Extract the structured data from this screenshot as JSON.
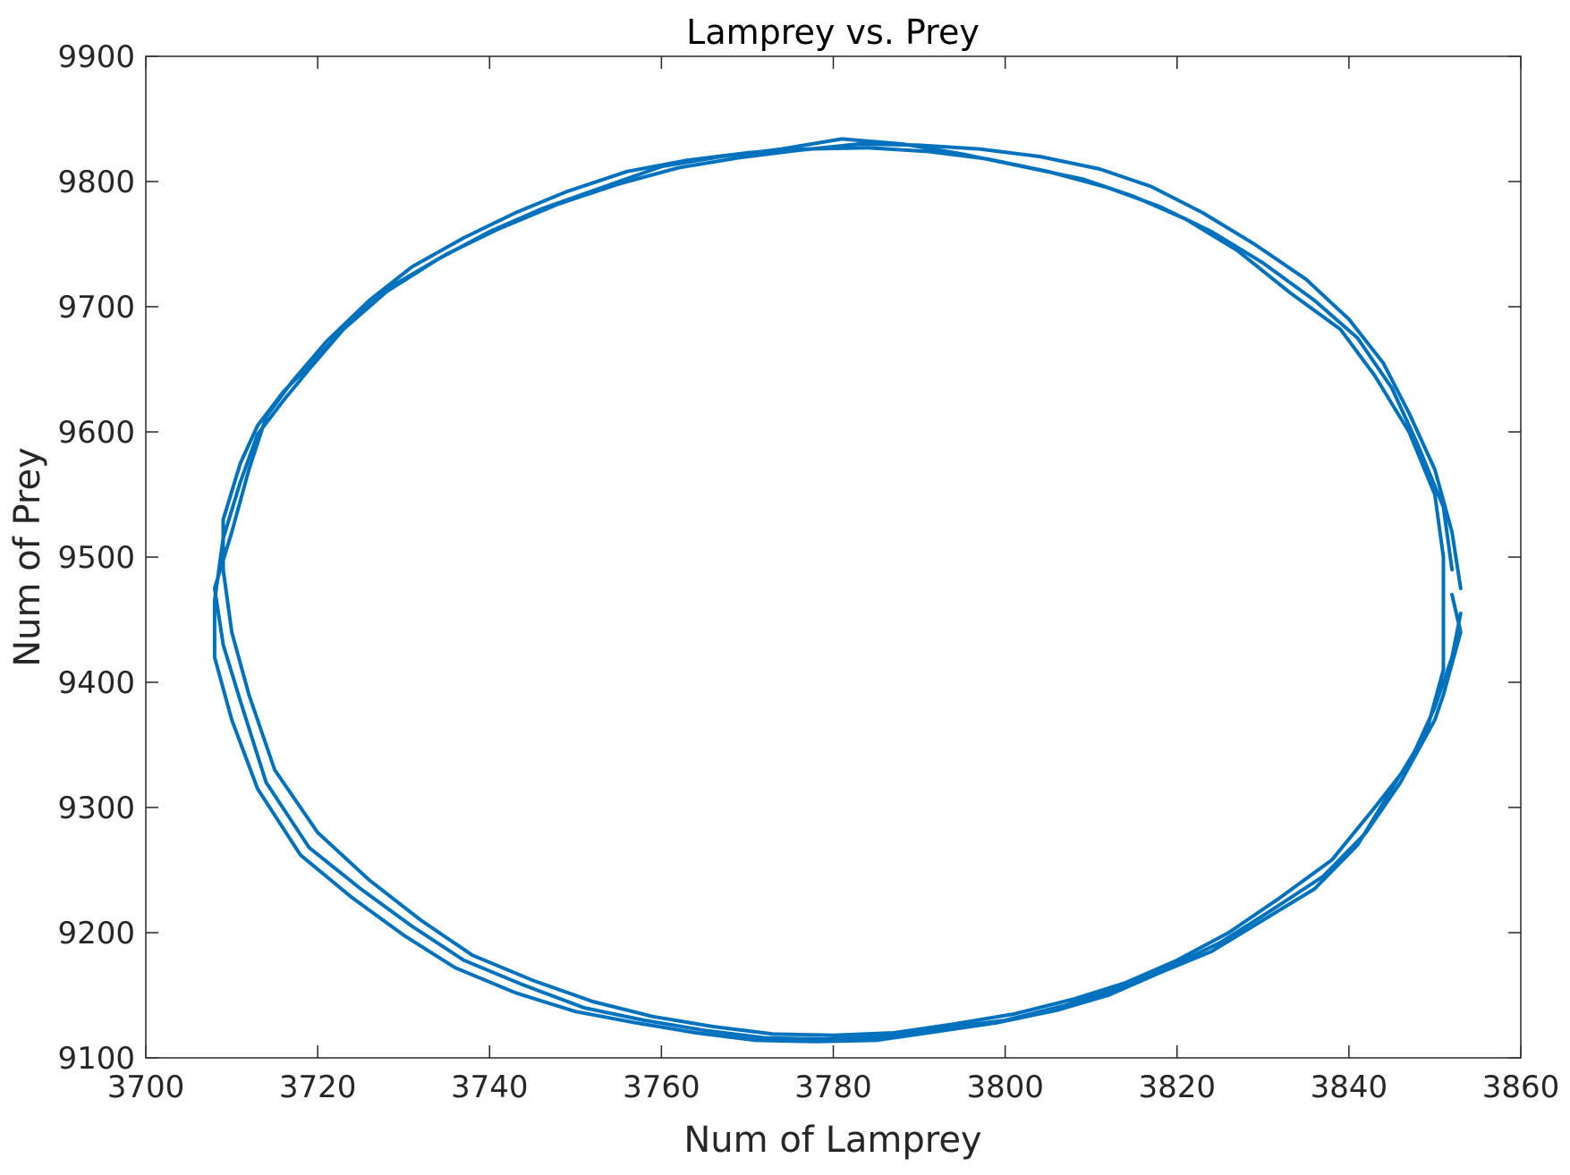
{
  "chart_data": {
    "type": "line",
    "title": "Lamprey vs. Prey",
    "xlabel": "Num of Lamprey",
    "ylabel": "Num of Prey",
    "xlim": [
      3700,
      3860
    ],
    "ylim": [
      9100,
      9900
    ],
    "xticks": [
      "3700",
      "3720",
      "3740",
      "3760",
      "3780",
      "3800",
      "3820",
      "3840",
      "3860"
    ],
    "yticks": [
      "9100",
      "9200",
      "9300",
      "9400",
      "9500",
      "9600",
      "9700",
      "9800",
      "9900"
    ],
    "grid": false,
    "legend": "none",
    "line_color": "#0072BD",
    "series": [
      {
        "x": [
          3852,
          3853,
          3851,
          3850,
          3846,
          3842,
          3837,
          3831,
          3825,
          3819,
          3813,
          3807,
          3800,
          3793,
          3786,
          3779,
          3772,
          3765,
          3758,
          3751,
          3744,
          3737,
          3731,
          3725,
          3719,
          3714,
          3711,
          3709,
          3708,
          3710,
          3712,
          3714,
          3717,
          3721,
          3726,
          3731,
          3737,
          3743,
          3749,
          3756,
          3763,
          3770,
          3777,
          3784,
          3791,
          3798,
          3805,
          3812,
          3818,
          3824,
          3830,
          3836,
          3841,
          3845,
          3848,
          3851,
          3852
        ],
        "y": [
          9470,
          9440,
          9390,
          9370,
          9320,
          9280,
          9245,
          9218,
          9192,
          9172,
          9155,
          9142,
          9130,
          9124,
          9117,
          9115,
          9116,
          9122,
          9130,
          9140,
          9158,
          9178,
          9205,
          9235,
          9268,
          9320,
          9385,
          9430,
          9475,
          9520,
          9570,
          9612,
          9640,
          9672,
          9705,
          9732,
          9755,
          9775,
          9792,
          9808,
          9817,
          9823,
          9826,
          9827,
          9824,
          9818,
          9808,
          9795,
          9780,
          9760,
          9735,
          9705,
          9675,
          9635,
          9590,
          9540,
          9490
        ]
      },
      {
        "x": [
          3853,
          3852,
          3850,
          3847,
          3843,
          3838,
          3832,
          3826,
          3820,
          3814,
          3808,
          3801,
          3794,
          3787,
          3780,
          3773,
          3766,
          3759,
          3752,
          3745,
          3738,
          3732,
          3726,
          3720,
          3715,
          3712,
          3710,
          3709,
          3709,
          3711,
          3713,
          3716,
          3720,
          3724,
          3729,
          3735,
          3741,
          3748,
          3755,
          3762,
          3769,
          3776,
          3783,
          3790,
          3797,
          3804,
          3811,
          3817,
          3823,
          3829,
          3835,
          3840,
          3844,
          3847,
          3850,
          3852,
          3853
        ],
        "y": [
          9455,
          9420,
          9380,
          9335,
          9300,
          9258,
          9228,
          9200,
          9178,
          9160,
          9147,
          9135,
          9127,
          9120,
          9118,
          9119,
          9125,
          9133,
          9145,
          9162,
          9182,
          9210,
          9242,
          9280,
          9330,
          9390,
          9440,
          9490,
          9530,
          9575,
          9605,
          9632,
          9660,
          9690,
          9718,
          9742,
          9762,
          9782,
          9798,
          9811,
          9819,
          9825,
          9830,
          9829,
          9826,
          9820,
          9810,
          9796,
          9775,
          9750,
          9722,
          9690,
          9655,
          9615,
          9570,
          9520,
          9475
        ]
      },
      {
        "x": [
          3851,
          3851,
          3849,
          3845,
          3841,
          3836,
          3830,
          3824,
          3818,
          3812,
          3806,
          3799,
          3792,
          3785,
          3778,
          3771,
          3764,
          3757,
          3750,
          3743,
          3736,
          3730,
          3724,
          3718,
          3713,
          3710,
          3708,
          3708,
          3709,
          3711,
          3713,
          3716,
          3719,
          3723,
          3728,
          3734,
          3740,
          3746,
          3753,
          3760,
          3767,
          3774,
          3781,
          3788,
          3795,
          3802,
          3809,
          3815,
          3821,
          3827,
          3833,
          3839,
          3843,
          3847,
          3850,
          3851
        ],
        "y": [
          9500,
          9410,
          9360,
          9315,
          9270,
          9235,
          9210,
          9185,
          9168,
          9150,
          9138,
          9128,
          9121,
          9114,
          9113,
          9114,
          9120,
          9128,
          9137,
          9152,
          9172,
          9198,
          9228,
          9262,
          9315,
          9370,
          9420,
          9465,
          9515,
          9560,
          9598,
          9625,
          9650,
          9682,
          9712,
          9738,
          9760,
          9778,
          9795,
          9812,
          9820,
          9826,
          9834,
          9830,
          9822,
          9812,
          9802,
          9788,
          9770,
          9745,
          9712,
          9682,
          9645,
          9600,
          9550,
          9500
        ]
      }
    ]
  }
}
